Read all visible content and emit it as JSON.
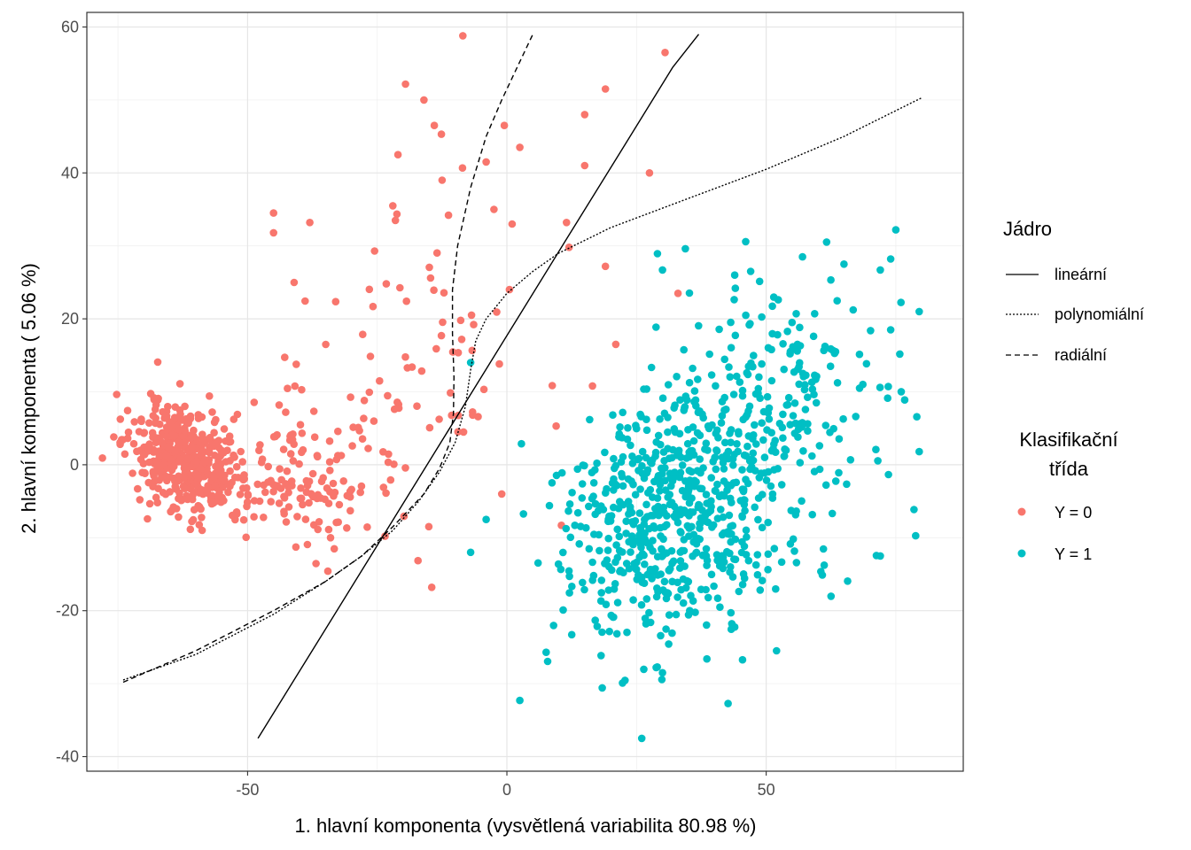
{
  "chart_data": {
    "type": "scatter",
    "title": "",
    "xlabel": "1. hlavní komponenta (vysvětlená variabilita 80.98 %)",
    "ylabel": "2. hlavní komponenta ( 5.06 %)",
    "xlim": [
      -81,
      88
    ],
    "ylim": [
      -42,
      62
    ],
    "x_ticks": [
      -50,
      0,
      50
    ],
    "y_ticks": [
      -40,
      -20,
      0,
      20,
      40,
      60
    ],
    "x_tick_labels": [
      "-50",
      "0",
      "50"
    ],
    "y_tick_labels": [
      "-40",
      "-20",
      "0",
      "20",
      "40",
      "60"
    ],
    "grid": true,
    "kernel_legend": {
      "title": "Jádro",
      "entries": [
        {
          "label": "lineární",
          "dash": "solid"
        },
        {
          "label": "polynomiální",
          "dash": "dotted"
        },
        {
          "label": "radiální",
          "dash": "dashed"
        }
      ]
    },
    "class_legend": {
      "title_lines": [
        "Klasifikační",
        "třída"
      ],
      "entries": [
        {
          "label": "Y = 0",
          "color": "#F8766D"
        },
        {
          "label": "Y = 1",
          "color": "#00BFC4"
        }
      ]
    },
    "decision_boundaries": [
      {
        "name": "lineární",
        "dash": "solid",
        "points": [
          [
            -48,
            -37.5
          ],
          [
            -38,
            -26
          ],
          [
            -28,
            -14.5
          ],
          [
            -18,
            -3
          ],
          [
            -8,
            8.5
          ],
          [
            2,
            20
          ],
          [
            12,
            31.5
          ],
          [
            22,
            43
          ],
          [
            32,
            54.5
          ],
          [
            37,
            59
          ]
        ]
      },
      {
        "name": "polynomiální",
        "dash": "dotted",
        "points": [
          [
            -74,
            -29.5
          ],
          [
            -60,
            -26
          ],
          [
            -45,
            -20.5
          ],
          [
            -35,
            -16
          ],
          [
            -28,
            -12.5
          ],
          [
            -22,
            -9
          ],
          [
            -17,
            -5
          ],
          [
            -13,
            -1
          ],
          [
            -10,
            3
          ],
          [
            -8,
            8
          ],
          [
            -7,
            13
          ],
          [
            -6,
            17
          ],
          [
            -4,
            20
          ],
          [
            0,
            23.5
          ],
          [
            5,
            26.5
          ],
          [
            10,
            29
          ],
          [
            20,
            32.5
          ],
          [
            35,
            36.5
          ],
          [
            50,
            40.5
          ],
          [
            65,
            45
          ],
          [
            80,
            50.3
          ]
        ]
      },
      {
        "name": "radiální",
        "dash": "dashed",
        "points": [
          [
            -74,
            -29.8
          ],
          [
            -60,
            -25.5
          ],
          [
            -45,
            -20
          ],
          [
            -35,
            -16
          ],
          [
            -28,
            -12.5
          ],
          [
            -22,
            -8.5
          ],
          [
            -16,
            -4
          ],
          [
            -13,
            -0.5
          ],
          [
            -11,
            3
          ],
          [
            -10.3,
            7
          ],
          [
            -10.2,
            12
          ],
          [
            -10.5,
            18
          ],
          [
            -10.5,
            24
          ],
          [
            -9.5,
            30
          ],
          [
            -7,
            38
          ],
          [
            -4,
            45
          ],
          [
            -1,
            50
          ],
          [
            2,
            54.5
          ],
          [
            5,
            59
          ]
        ]
      }
    ],
    "series": [
      {
        "name": "Y = 0",
        "color": "#F8766D",
        "seed": 11,
        "clusters": [
          {
            "n": 430,
            "cx": -62,
            "cy": 1,
            "sx": 5.5,
            "sy": 3.5,
            "rot": -0.38
          },
          {
            "n": 120,
            "cx": -42,
            "cy": -2,
            "sx": 8,
            "sy": 4,
            "rot": -0.05
          },
          {
            "n": 80,
            "cx": -28,
            "cy": 6,
            "sx": 12,
            "sy": 9,
            "rot": 0.1
          },
          {
            "n": 25,
            "cx": -15,
            "cy": 25,
            "sx": 8,
            "sy": 12,
            "rot": 0.0
          }
        ],
        "extra_points": [
          [
            -8.5,
            58.8
          ],
          [
            30.5,
            56.5
          ],
          [
            19,
            51.5
          ],
          [
            -16,
            50
          ],
          [
            -14,
            46.5
          ],
          [
            15,
            48
          ],
          [
            -0.5,
            46.5
          ],
          [
            2.5,
            43.5
          ],
          [
            -21,
            42.5
          ],
          [
            -4,
            41.5
          ],
          [
            15,
            41
          ],
          [
            27.5,
            40
          ],
          [
            -12.5,
            39
          ],
          [
            -45,
            34.5
          ],
          [
            -45,
            31.8
          ],
          [
            -22,
            35.5
          ],
          [
            -21.5,
            33.5
          ],
          [
            -38,
            33.2
          ],
          [
            -2.5,
            35
          ],
          [
            1,
            33
          ],
          [
            11.5,
            33.2
          ],
          [
            12,
            29.8
          ],
          [
            19,
            27.2
          ],
          [
            33,
            23.5
          ],
          [
            21,
            16.5
          ],
          [
            16.5,
            10.8
          ],
          [
            9.5,
            5.3
          ],
          [
            10.5,
            -8.3
          ],
          [
            -14.5,
            -16.8
          ],
          [
            -34,
            -10
          ],
          [
            0.5,
            24
          ],
          [
            -1,
            -4
          ]
        ]
      },
      {
        "name": "Y = 1",
        "color": "#00BFC4",
        "seed": 29,
        "clusters": [
          {
            "n": 520,
            "cx": 38,
            "cy": -3,
            "sx": 14,
            "sy": 9.5,
            "rot": 0.48
          },
          {
            "n": 220,
            "cx": 28,
            "cy": -8,
            "sx": 10,
            "sy": 7,
            "rot": 0.3
          },
          {
            "n": 70,
            "cx": 55,
            "cy": 10,
            "sx": 9,
            "sy": 8,
            "rot": 0.3
          }
        ],
        "extra_points": [
          [
            75,
            32.2
          ],
          [
            74,
            28.2
          ],
          [
            57,
            28.5
          ],
          [
            47,
            26.5
          ],
          [
            65,
            27.5
          ],
          [
            72,
            26.7
          ],
          [
            30,
            26.7
          ],
          [
            79.5,
            21
          ],
          [
            74,
            18.5
          ],
          [
            79.5,
            1.8
          ],
          [
            72,
            -12.5
          ],
          [
            26,
            -37.5
          ],
          [
            2.5,
            -32.3
          ],
          [
            30,
            -28.5
          ],
          [
            52,
            -25.5
          ],
          [
            -7,
            -12
          ],
          [
            -4,
            -7.5
          ],
          [
            -7,
            14
          ]
        ]
      }
    ]
  }
}
